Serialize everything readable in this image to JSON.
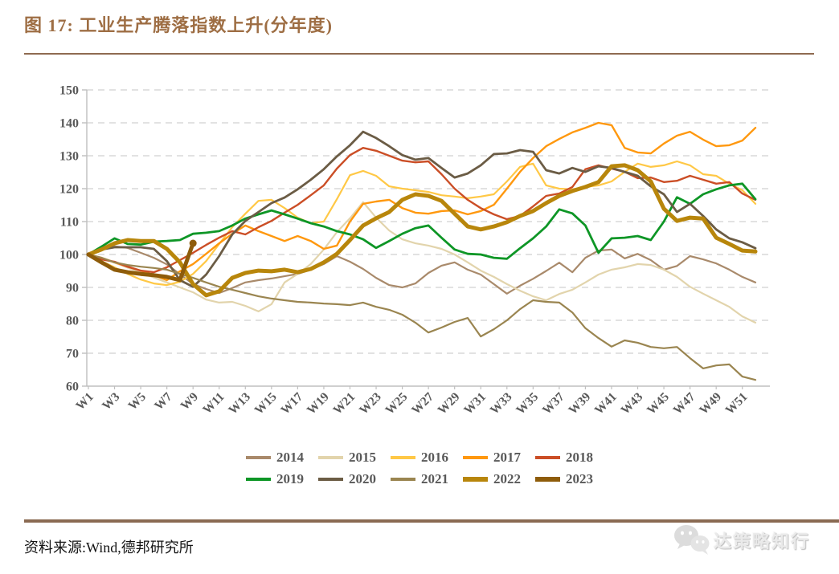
{
  "page": {
    "title": "图 17: 工业生产腾落指数上升(分年度)",
    "source_note": "资料来源:Wind,德邦研究所",
    "watermark": "达策略知行"
  },
  "colors": {
    "title_brown": "#9E6E44",
    "rule_brown": "#8F6B51",
    "axis_text": "#595959",
    "gridline": "#D9D9D9",
    "axis_line": "#BFBFBF"
  },
  "chart_data": {
    "type": "line",
    "x_unit": "week-of-year",
    "x_tick_labels": [
      "W1",
      "W3",
      "W5",
      "W7",
      "W9",
      "W11",
      "W13",
      "W15",
      "W17",
      "W19",
      "W21",
      "W23",
      "W25",
      "W27",
      "W29",
      "W31",
      "W33",
      "W35",
      "W37",
      "W39",
      "W41",
      "W43",
      "W45",
      "W47",
      "W49",
      "W51"
    ],
    "weeks_total": 52,
    "ylim": [
      60,
      150
    ],
    "y_ticks": [
      60,
      70,
      80,
      90,
      100,
      110,
      120,
      130,
      140,
      150
    ],
    "grid": "horizontal-dashed",
    "legend_position": "bottom-two-rows",
    "series": [
      {
        "name": "2014",
        "color": "#A98A6B",
        "width": 2.2,
        "values": [
          100,
          101.5,
          102.5,
          102,
          100.5,
          99,
          97,
          94,
          91,
          89.5,
          88.3,
          89.8,
          91.5,
          92.2,
          92.7,
          93.4,
          94.1,
          95.4,
          97.1,
          99.5,
          97.8,
          95.6,
          92.9,
          90.7,
          90,
          91.2,
          94.4,
          96.6,
          97.6,
          95.4,
          93.9,
          91,
          88.1,
          90.5,
          92.6,
          95,
          97.5,
          94.6,
          99,
          101.2,
          101.5,
          98.8,
          100.2,
          98.3,
          95.4,
          96.5,
          99.5,
          98.5,
          97.3,
          95.4,
          93.2,
          91.5
        ]
      },
      {
        "name": "2015",
        "color": "#E2D4AC",
        "width": 2.2,
        "values": [
          100,
          99,
          97.5,
          96,
          94.5,
          93,
          91.5,
          90,
          88.5,
          86.3,
          85.4,
          85.6,
          84.4,
          82.7,
          84.9,
          91.5,
          94.1,
          97.1,
          101.5,
          106.8,
          111,
          115.9,
          111.2,
          107.3,
          104.6,
          103.4,
          102.7,
          101.7,
          100,
          97.6,
          95.1,
          93.2,
          91,
          89,
          87.3,
          86.1,
          88,
          89.3,
          91.5,
          93.9,
          95.4,
          96.1,
          97.1,
          96.8,
          95.4,
          93.2,
          90.2,
          88.1,
          86.1,
          84.1,
          81.2,
          79.3
        ]
      },
      {
        "name": "2016",
        "color": "#FFC846",
        "width": 2.2,
        "values": [
          100,
          98,
          96.1,
          94.1,
          92.4,
          91.2,
          90.7,
          91.7,
          94.1,
          98,
          103.2,
          108.3,
          112.4,
          116.3,
          116.6,
          114.1,
          111.2,
          109.5,
          110,
          116.8,
          124.1,
          125.4,
          123.9,
          120.7,
          120,
          119.5,
          119,
          118,
          117.6,
          117.1,
          117.6,
          118.3,
          122.2,
          126.6,
          127.6,
          121,
          120,
          119.8,
          120.5,
          121,
          122.2,
          125.1,
          127.6,
          126.6,
          127.1,
          128.3,
          127.1,
          124.4,
          123.9,
          121.5,
          119.5,
          115.4
        ]
      },
      {
        "name": "2017",
        "color": "#FF980E",
        "width": 2.4,
        "values": [
          100,
          99,
          97.6,
          96.3,
          95.1,
          93.7,
          92.2,
          94.9,
          97.1,
          100.2,
          103.4,
          106.3,
          108.8,
          107.1,
          105.6,
          104.1,
          105.6,
          104.1,
          101.7,
          102.7,
          110,
          115.4,
          116.1,
          116.6,
          114.1,
          112.7,
          112.4,
          113.2,
          113.4,
          112.2,
          113.2,
          115.1,
          120,
          125.1,
          129.3,
          132.9,
          135.1,
          137.1,
          138.5,
          140,
          139.3,
          132.4,
          131,
          130.7,
          133.7,
          136.1,
          137.3,
          134.9,
          132.9,
          133.2,
          134.6,
          138.5
        ]
      },
      {
        "name": "2018",
        "color": "#CB4E26",
        "width": 2.4,
        "values": [
          100,
          98.5,
          97.8,
          96.3,
          95.1,
          94.6,
          96.1,
          98.3,
          100.5,
          102.9,
          105.1,
          107.1,
          106.1,
          108.3,
          110.2,
          112.7,
          115.1,
          118,
          121,
          126.1,
          130.2,
          132.4,
          131.5,
          130,
          128.5,
          128,
          128.3,
          124.4,
          120,
          116.6,
          114.1,
          112.2,
          110.7,
          111.7,
          114.6,
          117.8,
          118.5,
          120.5,
          125.9,
          127.1,
          126.1,
          125.1,
          123.2,
          123.4,
          122,
          122.4,
          123.9,
          122.7,
          121.5,
          122,
          118.5,
          116.6
        ]
      },
      {
        "name": "2019",
        "color": "#0E9626",
        "width": 2.8,
        "values": [
          100,
          102.4,
          104.9,
          103.2,
          103,
          103.9,
          104.1,
          104.4,
          106.3,
          106.6,
          107.1,
          108.8,
          110.9,
          112.2,
          113.4,
          112.2,
          110.9,
          109.5,
          108.5,
          107.1,
          106.1,
          104.6,
          102,
          104.1,
          106.3,
          108,
          108.8,
          105.1,
          101.5,
          100.2,
          100,
          99,
          98.7,
          101.9,
          104.9,
          108.5,
          113.7,
          112.5,
          108.8,
          100.5,
          104.9,
          105.1,
          105.6,
          104.4,
          110,
          117.4,
          115.4,
          118.3,
          119.8,
          121,
          121.5,
          116.8
        ]
      },
      {
        "name": "2020",
        "color": "#6B5C45",
        "width": 2.8,
        "values": [
          100,
          101.5,
          102.2,
          102.2,
          102.2,
          101.7,
          98,
          92.2,
          90.2,
          93.9,
          99.5,
          106.1,
          110.2,
          112.9,
          115.6,
          117.3,
          119.8,
          122.7,
          125.9,
          129.8,
          133.2,
          137.3,
          135.4,
          132.9,
          130.2,
          128.8,
          129.3,
          126.3,
          123.4,
          124.6,
          127.1,
          130.5,
          130.7,
          131.7,
          131.2,
          125.6,
          124.6,
          126.3,
          125.1,
          126.8,
          126.3,
          125.1,
          123.9,
          120.7,
          118.3,
          112.9,
          115.4,
          111.7,
          107.6,
          104.9,
          103.7,
          101.9
        ]
      },
      {
        "name": "2021",
        "color": "#9A8550",
        "width": 2.2,
        "values": [
          100,
          99,
          97.6,
          96.8,
          96.3,
          95.9,
          95.4,
          94.1,
          92.9,
          91.5,
          90.2,
          89.3,
          88.3,
          87.3,
          86.6,
          86.1,
          85.6,
          85.4,
          85.1,
          84.9,
          84.6,
          85.4,
          84.1,
          83.2,
          81.7,
          79.3,
          76.3,
          77.8,
          79.5,
          80.7,
          75.1,
          77.3,
          80,
          83.4,
          86.1,
          85.6,
          85.4,
          82.4,
          77.6,
          74.6,
          72,
          73.9,
          73.2,
          71.9,
          71.5,
          71.9,
          68.5,
          65.4,
          66.3,
          66.6,
          62.9,
          61.9
        ]
      },
      {
        "name": "2022",
        "color": "#B8860B",
        "width": 5,
        "values": [
          100,
          101.5,
          103.4,
          104.4,
          104.1,
          104.1,
          101.7,
          97.6,
          91,
          87.6,
          88.8,
          92.9,
          94.4,
          95.1,
          94.9,
          95.4,
          94.6,
          95.6,
          97.6,
          100.2,
          104.4,
          108.8,
          111,
          112.9,
          116.6,
          118.3,
          117.8,
          116.3,
          112.4,
          108.5,
          107.6,
          108.5,
          109.8,
          111.7,
          113.2,
          115.6,
          117.8,
          119.3,
          120.5,
          122,
          126.8,
          127.1,
          125.6,
          122.2,
          113.9,
          110.2,
          111.2,
          110.9,
          105.1,
          103.2,
          101.2,
          100.9
        ]
      },
      {
        "name": "2023",
        "color": "#8E5C0A",
        "width": 5,
        "end_marker": true,
        "values": [
          100,
          97.6,
          95.4,
          94.6,
          94.1,
          93.7,
          93.2,
          92.2,
          103.4
        ]
      }
    ]
  }
}
